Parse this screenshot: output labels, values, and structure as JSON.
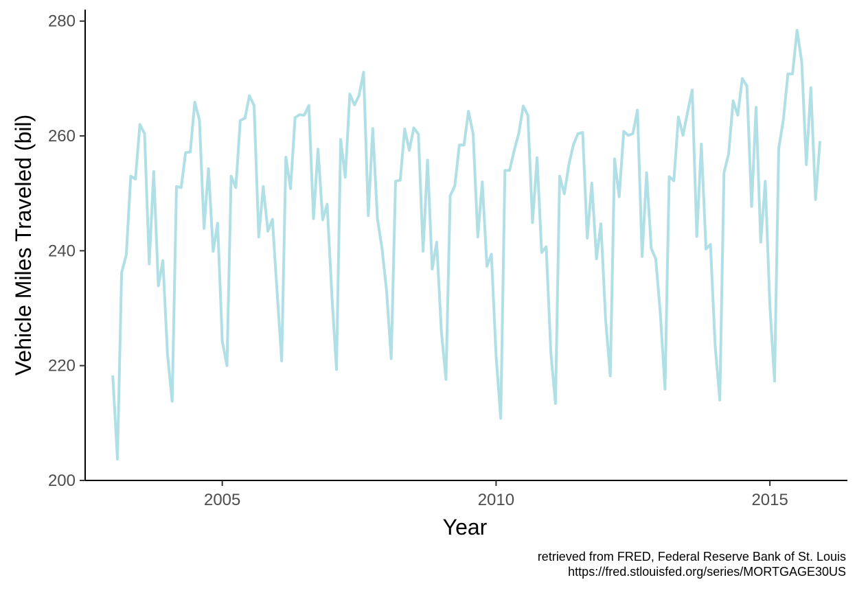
{
  "chart_data": {
    "type": "line",
    "xlabel": "Year",
    "ylabel": "Vehicle Miles Traveled (bil)",
    "xlim": [
      "2002-07-01",
      "2016-06-01"
    ],
    "ylim": [
      200,
      282
    ],
    "x_ticks": [
      {
        "date": "2005-01-01",
        "label": "2005"
      },
      {
        "date": "2010-01-01",
        "label": "2010"
      },
      {
        "date": "2015-01-01",
        "label": "2015"
      }
    ],
    "y_ticks": [
      200,
      220,
      240,
      260,
      280
    ],
    "grid": false,
    "line_color": "#b0e0e6",
    "series": [
      {
        "points": [
          [
            "2003-01-01",
            218.3
          ],
          [
            "2003-02-01",
            203.7
          ],
          [
            "2003-03-01",
            236.2
          ],
          [
            "2003-04-01",
            239.3
          ],
          [
            "2003-05-01",
            253.0
          ],
          [
            "2003-06-01",
            252.5
          ],
          [
            "2003-07-01",
            262.0
          ],
          [
            "2003-08-01",
            260.4
          ],
          [
            "2003-09-01",
            237.7
          ],
          [
            "2003-10-01",
            253.8
          ],
          [
            "2003-11-01",
            233.9
          ],
          [
            "2003-12-01",
            238.3
          ],
          [
            "2004-01-01",
            222.0
          ],
          [
            "2004-02-01",
            213.8
          ],
          [
            "2004-03-01",
            251.2
          ],
          [
            "2004-04-01",
            251.0
          ],
          [
            "2004-05-01",
            257.1
          ],
          [
            "2004-06-01",
            257.2
          ],
          [
            "2004-07-01",
            265.9
          ],
          [
            "2004-08-01",
            262.8
          ],
          [
            "2004-09-01",
            243.9
          ],
          [
            "2004-10-01",
            254.3
          ],
          [
            "2004-11-01",
            239.9
          ],
          [
            "2004-12-01",
            244.8
          ],
          [
            "2005-01-01",
            224.2
          ],
          [
            "2005-02-01",
            220.0
          ],
          [
            "2005-03-01",
            253.0
          ],
          [
            "2005-04-01",
            251.0
          ],
          [
            "2005-05-01",
            262.7
          ],
          [
            "2005-06-01",
            263.1
          ],
          [
            "2005-07-01",
            267.0
          ],
          [
            "2005-08-01",
            265.3
          ],
          [
            "2005-09-01",
            242.4
          ],
          [
            "2005-10-01",
            251.2
          ],
          [
            "2005-11-01",
            243.4
          ],
          [
            "2005-12-01",
            245.5
          ],
          [
            "2006-01-01",
            233.0
          ],
          [
            "2006-02-01",
            220.8
          ],
          [
            "2006-03-01",
            256.3
          ],
          [
            "2006-04-01",
            250.8
          ],
          [
            "2006-05-01",
            263.2
          ],
          [
            "2006-06-01",
            263.7
          ],
          [
            "2006-07-01",
            263.6
          ],
          [
            "2006-08-01",
            265.3
          ],
          [
            "2006-09-01",
            245.6
          ],
          [
            "2006-10-01",
            257.7
          ],
          [
            "2006-11-01",
            245.4
          ],
          [
            "2006-12-01",
            248.1
          ],
          [
            "2007-01-01",
            232.4
          ],
          [
            "2007-02-01",
            219.3
          ],
          [
            "2007-03-01",
            259.4
          ],
          [
            "2007-04-01",
            252.8
          ],
          [
            "2007-05-01",
            267.3
          ],
          [
            "2007-06-01",
            265.4
          ],
          [
            "2007-07-01",
            267.0
          ],
          [
            "2007-08-01",
            271.1
          ],
          [
            "2007-09-01",
            246.1
          ],
          [
            "2007-10-01",
            261.3
          ],
          [
            "2007-11-01",
            245.6
          ],
          [
            "2007-12-01",
            240.5
          ],
          [
            "2008-01-01",
            233.1
          ],
          [
            "2008-02-01",
            221.2
          ],
          [
            "2008-03-01",
            252.1
          ],
          [
            "2008-04-01",
            252.3
          ],
          [
            "2008-05-01",
            261.2
          ],
          [
            "2008-06-01",
            257.5
          ],
          [
            "2008-07-01",
            261.4
          ],
          [
            "2008-08-01",
            260.3
          ],
          [
            "2008-09-01",
            239.9
          ],
          [
            "2008-10-01",
            255.8
          ],
          [
            "2008-11-01",
            236.8
          ],
          [
            "2008-12-01",
            241.5
          ],
          [
            "2009-01-01",
            226.0
          ],
          [
            "2009-02-01",
            217.6
          ],
          [
            "2009-03-01",
            249.6
          ],
          [
            "2009-04-01",
            251.3
          ],
          [
            "2009-05-01",
            258.4
          ],
          [
            "2009-06-01",
            258.4
          ],
          [
            "2009-07-01",
            264.3
          ],
          [
            "2009-08-01",
            260.3
          ],
          [
            "2009-09-01",
            242.4
          ],
          [
            "2009-10-01",
            252.0
          ],
          [
            "2009-11-01",
            237.3
          ],
          [
            "2009-12-01",
            239.4
          ],
          [
            "2010-01-01",
            221.7
          ],
          [
            "2010-02-01",
            210.8
          ],
          [
            "2010-03-01",
            254.0
          ],
          [
            "2010-04-01",
            254.0
          ],
          [
            "2010-05-01",
            257.4
          ],
          [
            "2010-06-01",
            260.4
          ],
          [
            "2010-07-01",
            265.2
          ],
          [
            "2010-08-01",
            263.6
          ],
          [
            "2010-09-01",
            244.9
          ],
          [
            "2010-10-01",
            256.2
          ],
          [
            "2010-11-01",
            239.7
          ],
          [
            "2010-12-01",
            240.7
          ],
          [
            "2011-01-01",
            222.2
          ],
          [
            "2011-02-01",
            213.4
          ],
          [
            "2011-03-01",
            253.0
          ],
          [
            "2011-04-01",
            249.9
          ],
          [
            "2011-05-01",
            255.0
          ],
          [
            "2011-06-01",
            258.5
          ],
          [
            "2011-07-01",
            260.4
          ],
          [
            "2011-08-01",
            260.6
          ],
          [
            "2011-09-01",
            242.2
          ],
          [
            "2011-10-01",
            251.8
          ],
          [
            "2011-11-01",
            238.6
          ],
          [
            "2011-12-01",
            244.7
          ],
          [
            "2012-01-01",
            228.1
          ],
          [
            "2012-02-01",
            218.2
          ],
          [
            "2012-03-01",
            256.0
          ],
          [
            "2012-04-01",
            249.4
          ],
          [
            "2012-05-01",
            260.8
          ],
          [
            "2012-06-01",
            260.1
          ],
          [
            "2012-07-01",
            260.4
          ],
          [
            "2012-08-01",
            264.5
          ],
          [
            "2012-09-01",
            239.0
          ],
          [
            "2012-10-01",
            253.6
          ],
          [
            "2012-11-01",
            240.4
          ],
          [
            "2012-12-01",
            238.6
          ],
          [
            "2013-01-01",
            229.1
          ],
          [
            "2013-02-01",
            215.9
          ],
          [
            "2013-03-01",
            252.9
          ],
          [
            "2013-04-01",
            252.2
          ],
          [
            "2013-05-01",
            263.3
          ],
          [
            "2013-06-01",
            260.1
          ],
          [
            "2013-07-01",
            264.1
          ],
          [
            "2013-08-01",
            268.0
          ],
          [
            "2013-09-01",
            242.5
          ],
          [
            "2013-10-01",
            258.6
          ],
          [
            "2013-11-01",
            240.3
          ],
          [
            "2013-12-01",
            241.1
          ],
          [
            "2014-01-01",
            223.5
          ],
          [
            "2014-02-01",
            214.0
          ],
          [
            "2014-03-01",
            253.6
          ],
          [
            "2014-04-01",
            256.9
          ],
          [
            "2014-05-01",
            266.1
          ],
          [
            "2014-06-01",
            263.6
          ],
          [
            "2014-07-01",
            270.0
          ],
          [
            "2014-08-01",
            268.7
          ],
          [
            "2014-09-01",
            247.7
          ],
          [
            "2014-10-01",
            265.0
          ],
          [
            "2014-11-01",
            241.5
          ],
          [
            "2014-12-01",
            252.1
          ],
          [
            "2015-01-01",
            230.5
          ],
          [
            "2015-02-01",
            217.3
          ],
          [
            "2015-03-01",
            257.8
          ],
          [
            "2015-04-01",
            262.9
          ],
          [
            "2015-05-01",
            270.8
          ],
          [
            "2015-06-01",
            270.8
          ],
          [
            "2015-07-01",
            278.4
          ],
          [
            "2015-08-01",
            272.9
          ],
          [
            "2015-09-01",
            255.0
          ],
          [
            "2015-10-01",
            268.4
          ],
          [
            "2015-11-01",
            248.9
          ],
          [
            "2015-12-01",
            259.1
          ]
        ]
      }
    ]
  },
  "caption": {
    "line1": "retrieved from FRED, Federal Reserve Bank of St. Louis",
    "line2": "https://fred.stlouisfed.org/series/MORTGAGE30US"
  }
}
